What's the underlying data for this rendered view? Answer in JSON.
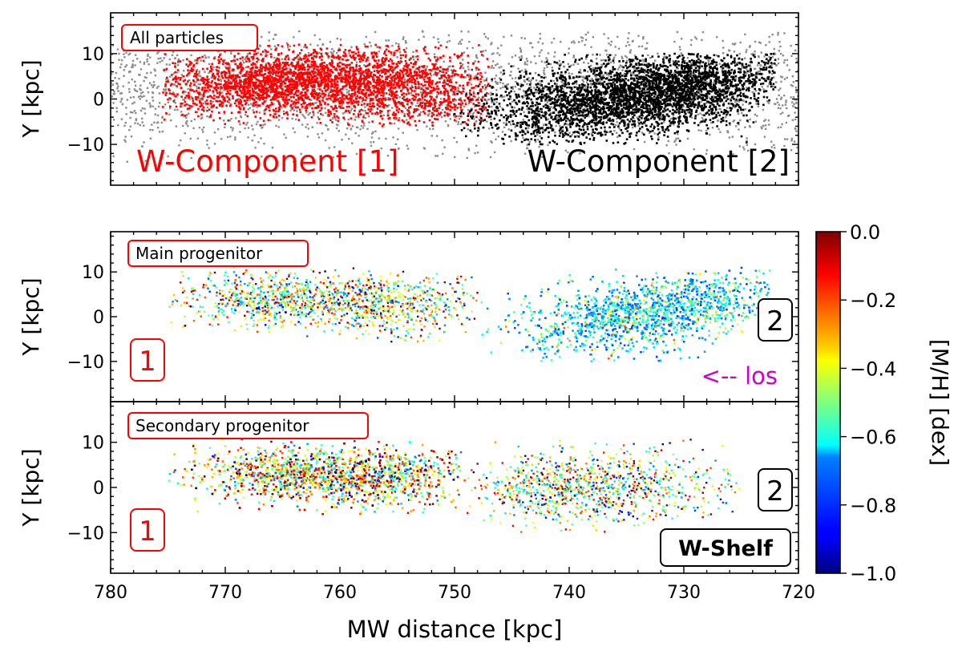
{
  "chart_data": [
    {
      "type": "scatter",
      "panel": "top",
      "title_box": "All particles",
      "ylabel": "Y [kpc]",
      "xlim": [
        780,
        720
      ],
      "ylim": [
        -19,
        19
      ],
      "yticks": [
        "10",
        "0",
        "−10"
      ],
      "yticks_values": [
        10,
        0,
        -10
      ],
      "series": [
        {
          "name": "All particles",
          "color": "#8c8c8c",
          "x_range": [
            780,
            720
          ],
          "y_range": [
            -14,
            15
          ]
        },
        {
          "name": "W-Component [1]",
          "color": "#ff0000",
          "x_range": [
            775,
            747
          ],
          "y_range": [
            -6,
            12
          ]
        },
        {
          "name": "W-Component [2]",
          "color": "#000000",
          "x_range": [
            750,
            722
          ],
          "y_range": [
            -10,
            10
          ]
        }
      ],
      "annotations": {
        "component1": "W-Component [1]",
        "component2": "W-Component [2]"
      }
    },
    {
      "type": "scatter",
      "panel": "middle",
      "title_box": "Main progenitor",
      "ylabel": "Y [kpc]",
      "xlim": [
        780,
        720
      ],
      "ylim": [
        -19,
        19
      ],
      "yticks": [
        "10",
        "0",
        "−10"
      ],
      "yticks_values": [
        10,
        0,
        -10
      ],
      "color_by": "[M/H] [dex]",
      "annotations": {
        "label_1": "1",
        "label_2": "2",
        "los": "<-- los"
      }
    },
    {
      "type": "scatter",
      "panel": "bottom",
      "title_box": "Secondary progenitor",
      "ylabel": "Y [kpc]",
      "xlabel": "MW distance [kpc]",
      "xlim": [
        780,
        720
      ],
      "ylim": [
        -19,
        19
      ],
      "xticks": [
        "780",
        "770",
        "760",
        "750",
        "740",
        "730",
        "720"
      ],
      "xticks_values": [
        780,
        770,
        760,
        750,
        740,
        730,
        720
      ],
      "yticks": [
        "10",
        "0",
        "−10"
      ],
      "yticks_values": [
        10,
        0,
        -10
      ],
      "color_by": "[M/H] [dex]",
      "annotations": {
        "label_1": "1",
        "label_2": "2",
        "shelf": "W-Shelf"
      }
    }
  ],
  "colorbar": {
    "label": "[M/H] [dex]",
    "range": [
      -1.0,
      0.0
    ],
    "colormap": "jet",
    "ticks": [
      "0.0",
      "−0.2",
      "−0.4",
      "−0.6",
      "−0.8",
      "−1.0"
    ],
    "ticks_values": [
      0.0,
      -0.2,
      -0.4,
      -0.6,
      -0.8,
      -1.0
    ]
  },
  "colors": {
    "red": "#ff0000",
    "black": "#000000",
    "gray": "#8c8c8c",
    "magenta": "#cc00cc"
  }
}
